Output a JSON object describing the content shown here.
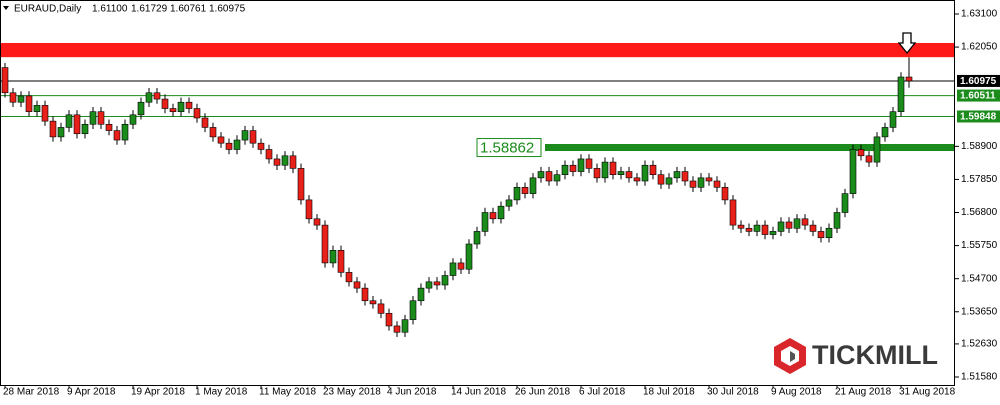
{
  "chart_data": {
    "type": "candlestick",
    "title": "EURAUD,Daily",
    "header_values": [
      "1.61100",
      "1.61729",
      "1.60761",
      "1.60975"
    ],
    "watermark": "TICKMILL",
    "categories": [
      "28 Mar 2018",
      null,
      null,
      null,
      null,
      null,
      null,
      null,
      "9 Apr 2018",
      null,
      null,
      null,
      null,
      null,
      null,
      null,
      "19 Apr 2018",
      null,
      null,
      null,
      null,
      null,
      null,
      null,
      "1 May 2018",
      null,
      null,
      null,
      null,
      null,
      null,
      null,
      "11 May 2018",
      null,
      null,
      null,
      null,
      null,
      null,
      null,
      "23 May 2018",
      null,
      null,
      null,
      null,
      null,
      null,
      null,
      "4 Jun 2018",
      null,
      null,
      null,
      null,
      null,
      null,
      null,
      "14 Jun 2018",
      null,
      null,
      null,
      null,
      null,
      null,
      null,
      "26 Jun 2018",
      null,
      null,
      null,
      null,
      null,
      null,
      null,
      "6 Jul 2018",
      null,
      null,
      null,
      null,
      null,
      null,
      null,
      "18 Jul 2018",
      null,
      null,
      null,
      null,
      null,
      null,
      null,
      "30 Jul 2018",
      null,
      null,
      null,
      null,
      null,
      null,
      null,
      "9 Aug 2018",
      null,
      null,
      null,
      null,
      null,
      null,
      null,
      "21 Aug 2018",
      null,
      null,
      null,
      null,
      null,
      null,
      null,
      "31 Aug 2018",
      null
    ],
    "open": [
      1.614,
      1.606,
      1.603,
      1.605,
      1.6,
      1.602,
      1.597,
      1.592,
      1.595,
      1.599,
      1.593,
      1.596,
      1.6,
      1.596,
      1.594,
      1.591,
      1.596,
      1.599,
      1.603,
      1.606,
      1.604,
      1.601,
      1.6,
      1.603,
      1.601,
      1.598,
      1.595,
      1.592,
      1.59,
      1.588,
      1.591,
      1.594,
      1.59,
      1.588,
      1.585,
      1.583,
      1.586,
      1.582,
      1.572,
      1.566,
      1.564,
      1.552,
      1.556,
      1.549,
      1.546,
      1.544,
      1.54,
      1.539,
      1.536,
      1.532,
      1.53,
      1.534,
      1.54,
      1.544,
      1.546,
      1.545,
      1.548,
      1.552,
      1.55,
      1.558,
      1.562,
      1.568,
      1.566,
      1.57,
      1.572,
      1.576,
      1.574,
      1.579,
      1.581,
      1.578,
      1.58,
      1.583,
      1.581,
      1.585,
      1.582,
      1.579,
      1.584,
      1.58,
      1.581,
      1.579,
      1.578,
      1.583,
      1.58,
      1.577,
      1.579,
      1.581,
      1.578,
      1.576,
      1.579,
      1.578,
      1.576,
      1.572,
      1.564,
      1.563,
      1.562,
      1.564,
      1.561,
      1.562,
      1.565,
      1.563,
      1.566,
      1.564,
      1.562,
      1.56,
      1.563,
      1.568,
      1.574,
      1.588,
      1.586,
      1.584,
      1.592,
      1.595,
      1.6,
      1.611
    ],
    "high": [
      1.6155,
      1.6075,
      1.6065,
      1.6065,
      1.6035,
      1.6035,
      1.5985,
      1.5965,
      1.6005,
      1.6005,
      1.5975,
      1.6015,
      1.6015,
      1.5975,
      1.5955,
      1.5975,
      1.6005,
      1.6045,
      1.6075,
      1.6075,
      1.6055,
      1.6025,
      1.6045,
      1.6045,
      1.6025,
      1.5995,
      1.5965,
      1.5935,
      1.5915,
      1.5925,
      1.5955,
      1.5955,
      1.5915,
      1.5895,
      1.5865,
      1.5875,
      1.5875,
      1.5835,
      1.5735,
      1.5675,
      1.5655,
      1.5575,
      1.5575,
      1.5505,
      1.5475,
      1.5455,
      1.5415,
      1.5405,
      1.5375,
      1.5335,
      1.5355,
      1.5415,
      1.5455,
      1.5475,
      1.5475,
      1.5495,
      1.5535,
      1.5535,
      1.5595,
      1.5635,
      1.5695,
      1.5695,
      1.5715,
      1.5735,
      1.5775,
      1.5775,
      1.5805,
      1.5825,
      1.5825,
      1.5815,
      1.5845,
      1.5845,
      1.5865,
      1.5865,
      1.5835,
      1.5855,
      1.5855,
      1.5825,
      1.5825,
      1.5805,
      1.5845,
      1.5845,
      1.5815,
      1.5805,
      1.5825,
      1.5825,
      1.5795,
      1.5805,
      1.5805,
      1.5795,
      1.5775,
      1.5735,
      1.5655,
      1.5645,
      1.5655,
      1.5655,
      1.5635,
      1.5665,
      1.5665,
      1.5675,
      1.5675,
      1.5655,
      1.5635,
      1.5645,
      1.5695,
      1.5755,
      1.5895,
      1.5895,
      1.5875,
      1.5935,
      1.5965,
      1.6015,
      1.6125,
      1.61729
    ],
    "low": [
      1.6045,
      1.6015,
      1.6015,
      1.5985,
      1.5985,
      1.5955,
      1.5905,
      1.5905,
      1.5935,
      1.5915,
      1.5915,
      1.5945,
      1.5945,
      1.5925,
      1.5895,
      1.5895,
      1.5945,
      1.5975,
      1.6015,
      1.6025,
      1.5995,
      1.5985,
      1.5985,
      1.5995,
      1.5965,
      1.5935,
      1.5905,
      1.5885,
      1.5865,
      1.5865,
      1.5895,
      1.5885,
      1.5865,
      1.5835,
      1.5815,
      1.5815,
      1.5805,
      1.5705,
      1.5645,
      1.5625,
      1.5505,
      1.5505,
      1.5475,
      1.5445,
      1.5425,
      1.5385,
      1.5375,
      1.5345,
      1.5305,
      1.5285,
      1.5285,
      1.5325,
      1.5385,
      1.5425,
      1.5435,
      1.5435,
      1.5465,
      1.5485,
      1.5485,
      1.5565,
      1.5605,
      1.5645,
      1.5645,
      1.5685,
      1.5705,
      1.5725,
      1.5725,
      1.5775,
      1.5765,
      1.5765,
      1.5785,
      1.5795,
      1.5795,
      1.5805,
      1.5775,
      1.5775,
      1.5785,
      1.5785,
      1.5775,
      1.5765,
      1.5765,
      1.5785,
      1.5755,
      1.5755,
      1.5775,
      1.5765,
      1.5745,
      1.5745,
      1.5765,
      1.5745,
      1.5705,
      1.5625,
      1.5615,
      1.5605,
      1.5605,
      1.5595,
      1.5595,
      1.5605,
      1.5615,
      1.5615,
      1.5625,
      1.5605,
      1.5585,
      1.5585,
      1.5615,
      1.5665,
      1.5725,
      1.5845,
      1.5825,
      1.5825,
      1.5905,
      1.5935,
      1.5985,
      1.60761
    ],
    "close": [
      1.606,
      1.603,
      1.605,
      1.6,
      1.602,
      1.597,
      1.592,
      1.595,
      1.599,
      1.593,
      1.596,
      1.6,
      1.596,
      1.594,
      1.591,
      1.596,
      1.599,
      1.603,
      1.606,
      1.604,
      1.601,
      1.6,
      1.603,
      1.601,
      1.598,
      1.595,
      1.592,
      1.59,
      1.588,
      1.591,
      1.594,
      1.59,
      1.588,
      1.585,
      1.583,
      1.586,
      1.582,
      1.572,
      1.566,
      1.564,
      1.552,
      1.556,
      1.549,
      1.546,
      1.544,
      1.54,
      1.539,
      1.536,
      1.532,
      1.53,
      1.534,
      1.54,
      1.544,
      1.546,
      1.545,
      1.548,
      1.552,
      1.55,
      1.558,
      1.562,
      1.568,
      1.566,
      1.57,
      1.572,
      1.576,
      1.574,
      1.579,
      1.581,
      1.578,
      1.58,
      1.583,
      1.581,
      1.585,
      1.582,
      1.579,
      1.584,
      1.58,
      1.581,
      1.579,
      1.578,
      1.583,
      1.58,
      1.577,
      1.579,
      1.581,
      1.578,
      1.576,
      1.579,
      1.578,
      1.576,
      1.572,
      1.564,
      1.563,
      1.562,
      1.564,
      1.561,
      1.562,
      1.565,
      1.563,
      1.566,
      1.564,
      1.562,
      1.56,
      1.563,
      1.568,
      1.574,
      1.588,
      1.586,
      1.584,
      1.592,
      1.595,
      1.6,
      1.611,
      1.60975
    ],
    "up_color": "#1b8c1b",
    "down_color": "#e8201a",
    "ylim": [
      1.51326,
      1.63544
    ],
    "yticks": [
      {
        "value": 1.631,
        "label": "1.63100"
      },
      {
        "value": 1.6205,
        "label": "1.62050"
      },
      {
        "value": 1.589,
        "label": "1.58900"
      },
      {
        "value": 1.5785,
        "label": "1.57850"
      },
      {
        "value": 1.568,
        "label": "1.56800"
      },
      {
        "value": 1.5575,
        "label": "1.55750"
      },
      {
        "value": 1.547,
        "label": "1.54700"
      },
      {
        "value": 1.5365,
        "label": "1.53650"
      },
      {
        "value": 1.5263,
        "label": "1.52630"
      },
      {
        "value": 1.5158,
        "label": "1.51580"
      }
    ],
    "zone": {
      "range": [
        1.6173,
        1.6218
      ],
      "color": "#ff1a1a"
    },
    "price_lines": [
      {
        "value": 1.60975,
        "color": "#000000"
      },
      {
        "value": 1.60511,
        "color": "#1b8c1b"
      },
      {
        "value": 1.59848,
        "color": "#1b8c1b"
      }
    ],
    "resistance": {
      "value": 1.58862,
      "color": "#1b8c1b"
    }
  }
}
